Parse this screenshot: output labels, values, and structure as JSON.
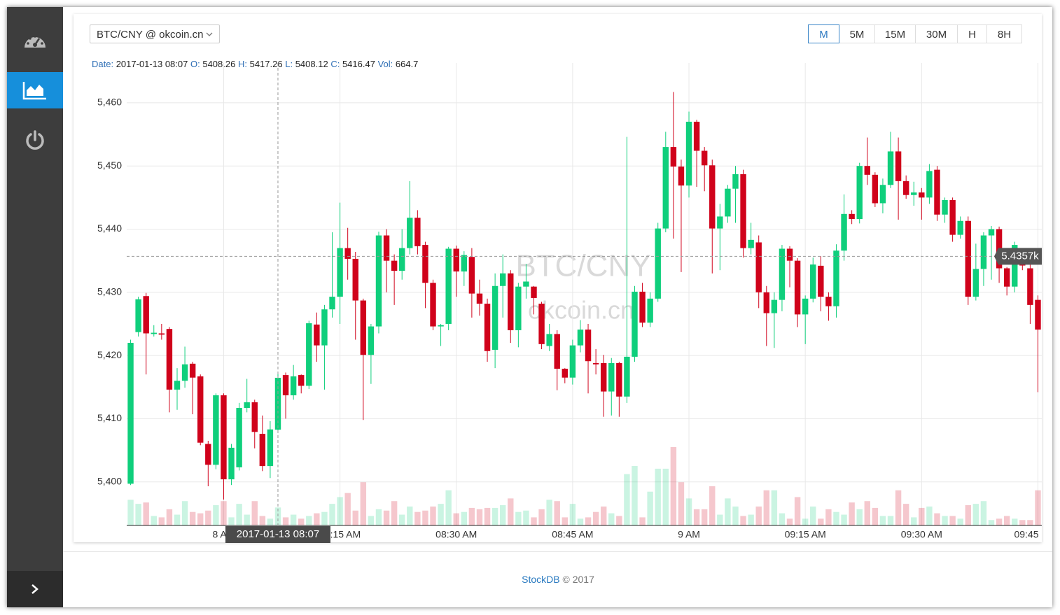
{
  "toolbar": {
    "pair": "BTC/CNY @ okcoin.cn",
    "intervals": [
      "M",
      "5M",
      "15M",
      "30M",
      "H",
      "8H"
    ],
    "active": "M"
  },
  "footer": {
    "brand": "StockDB",
    "copyright": "© 2017"
  },
  "chart_data": {
    "type": "candlestick",
    "watermark": [
      "BTC/CNY",
      "okcoin.cn"
    ],
    "up_color": "#0fcf7c",
    "down_color": "#d0021b",
    "grid": true,
    "ylim": [
      5393.1,
      5466.3
    ],
    "yticks": [
      {
        "value": 5400,
        "label": "5,400"
      },
      {
        "value": 5410,
        "label": "5,410"
      },
      {
        "value": 5420,
        "label": "5,420"
      },
      {
        "value": 5430,
        "label": "5,430"
      },
      {
        "value": 5440,
        "label": "5,440"
      },
      {
        "value": 5450,
        "label": "5,450"
      },
      {
        "value": 5460,
        "label": "5,460"
      }
    ],
    "xticks": [
      {
        "value": "08:00",
        "label": "8 AM"
      },
      {
        "value": "08:15",
        "label": "08:15 AM"
      },
      {
        "value": "08:30",
        "label": "08:30 AM"
      },
      {
        "value": "08:45",
        "label": "08:45 AM"
      },
      {
        "value": "09:00",
        "label": "9 AM"
      },
      {
        "value": "09:15",
        "label": "09:15 AM"
      },
      {
        "value": "09:30",
        "label": "09:30 AM"
      },
      {
        "value": "09:45",
        "label": "09:45"
      }
    ],
    "readout_labels": {
      "date": "Date:",
      "open": "O:",
      "high": "H:",
      "low": "L:",
      "close": "C:",
      "volume": "Vol:"
    },
    "crosshair": {
      "x": "08:07",
      "date": "2017-01-13 08:07",
      "price": {
        "value": 5435.7,
        "label": "5.4357k"
      }
    },
    "categories": [
      "07:48",
      "07:49",
      "07:50",
      "07:51",
      "07:52",
      "07:53",
      "07:54",
      "07:55",
      "07:56",
      "07:57",
      "07:58",
      "07:59",
      "08:00",
      "08:01",
      "08:02",
      "08:03",
      "08:04",
      "08:05",
      "08:06",
      "08:07",
      "08:08",
      "08:09",
      "08:10",
      "08:11",
      "08:12",
      "08:13",
      "08:14",
      "08:15",
      "08:16",
      "08:17",
      "08:18",
      "08:19",
      "08:20",
      "08:21",
      "08:22",
      "08:23",
      "08:24",
      "08:25",
      "08:26",
      "08:27",
      "08:28",
      "08:29",
      "08:30",
      "08:31",
      "08:32",
      "08:33",
      "08:34",
      "08:35",
      "08:36",
      "08:37",
      "08:38",
      "08:39",
      "08:40",
      "08:41",
      "08:42",
      "08:43",
      "08:44",
      "08:45",
      "08:46",
      "08:47",
      "08:48",
      "08:49",
      "08:50",
      "08:51",
      "08:52",
      "08:53",
      "08:54",
      "08:55",
      "08:56",
      "08:57",
      "08:58",
      "08:59",
      "09:00",
      "09:01",
      "09:02",
      "09:03",
      "09:04",
      "09:05",
      "09:06",
      "09:07",
      "09:08",
      "09:09",
      "09:10",
      "09:11",
      "09:12",
      "09:13",
      "09:14",
      "09:15",
      "09:16",
      "09:17",
      "09:18",
      "09:19",
      "09:20",
      "09:21",
      "09:22",
      "09:23",
      "09:24",
      "09:25",
      "09:26",
      "09:27",
      "09:28",
      "09:29",
      "09:30",
      "09:31",
      "09:32",
      "09:33",
      "09:34",
      "09:35",
      "09:36",
      "09:37",
      "09:38",
      "09:39",
      "09:40",
      "09:41",
      "09:42",
      "09:43",
      "09:44",
      "09:45"
    ],
    "open": [
      5399.7,
      5423.7,
      5429.4,
      5423.4,
      5423.5,
      5424.2,
      5414.6,
      5416,
      5418.7,
      5416.7,
      5406,
      5402.7,
      5413.7,
      5400.4,
      5402.3,
      5411.7,
      5412.6,
      5407.6,
      5402.5,
      5408.26,
      5416.9,
      5413.7,
      5416.9,
      5415.2,
      5424.9,
      5421.6,
      5427.3,
      5429.3,
      5437,
      5435.3,
      5428.7,
      5420.1,
      5424.6,
      5439,
      5435,
      5433.4,
      5437,
      5441.8,
      5437.5,
      5431.5,
      5424.6,
      5425,
      5436.9,
      5433.3,
      5435.6,
      5429.8,
      5428.2,
      5420.9,
      5431,
      5433,
      5424,
      5430.9,
      5430.9,
      5428.2,
      5421.5,
      5423.4,
      5417.9,
      5416.5,
      5421.6,
      5424.1,
      5418.8,
      5418.8,
      5414.3,
      5418.8,
      5413.5,
      5419.8,
      5430.1,
      5425.2,
      5429,
      5440.1,
      5453,
      5449.9,
      5446.9,
      5457,
      5452.4,
      5450.1,
      5440.1,
      5442,
      5446.4,
      5448.7,
      5437,
      5437.9,
      5430,
      5426.7,
      5428.8,
      5436.9,
      5435,
      5426.5,
      5429,
      5434.2,
      5429.3,
      5427.8,
      5436.6,
      5442.4,
      5441.6,
      5450,
      5448.6,
      5444.1,
      5447,
      5452.3,
      5447.6,
      5445.4,
      5445.8,
      5445,
      5449.4,
      5442.3,
      5444.6,
      5439.1,
      5441.3,
      5429.3,
      5433.7,
      5439,
      5440,
      5433.8,
      5430.9,
      5434.4,
      5433.8,
      5428.8
    ],
    "high": [
      5422.5,
      5429.3,
      5429.9,
      5424.8,
      5425,
      5424.5,
      5418,
      5421.4,
      5419,
      5417,
      5406.5,
      5414,
      5414,
      5406,
      5412.5,
      5416.3,
      5413,
      5410.5,
      5409.6,
      5417.26,
      5417.3,
      5418.5,
      5417,
      5425.5,
      5426.8,
      5428,
      5439.5,
      5444.2,
      5440.2,
      5436.4,
      5429,
      5425,
      5439.6,
      5440,
      5436,
      5440,
      5447.6,
      5443,
      5438,
      5432,
      5425,
      5437.2,
      5437.4,
      5436.5,
      5437,
      5432,
      5429,
      5433,
      5436,
      5433.5,
      5431.5,
      5434.5,
      5431,
      5428.5,
      5425,
      5424,
      5418,
      5422.5,
      5425.6,
      5425,
      5421,
      5420.1,
      5419.6,
      5419,
      5454.6,
      5431,
      5431.5,
      5430,
      5441,
      5455.4,
      5461.7,
      5451,
      5458.6,
      5457.3,
      5453,
      5451,
      5444,
      5447,
      5450,
      5449.4,
      5441,
      5439,
      5431,
      5430,
      5437.5,
      5437.3,
      5435.4,
      5429.5,
      5435.5,
      5435.7,
      5430,
      5437.6,
      5445.5,
      5443,
      5450.5,
      5454.5,
      5449,
      5448,
      5455.4,
      5454.5,
      5448.5,
      5447.5,
      5446.5,
      5450.3,
      5450,
      5445,
      5445,
      5442,
      5442,
      5437.7,
      5439.5,
      5440.5,
      5440.4,
      5434,
      5438,
      5436,
      5434.5,
      5429.5
    ],
    "low": [
      5399.5,
      5423,
      5417,
      5423,
      5422.5,
      5411,
      5411.4,
      5414.9,
      5410.7,
      5405.8,
      5399.3,
      5402,
      5397.2,
      5399.5,
      5401.8,
      5411,
      5405.3,
      5401.7,
      5400.6,
      5408.12,
      5410,
      5413,
      5414,
      5414.7,
      5419,
      5414.6,
      5426,
      5425,
      5432,
      5422.5,
      5409.8,
      5415.5,
      5423.5,
      5430,
      5428,
      5432,
      5436,
      5436,
      5427.5,
      5424,
      5421.5,
      5424,
      5429.3,
      5431,
      5426,
      5426.3,
      5419,
      5418,
      5426,
      5422,
      5421.3,
      5429,
      5426.5,
      5421,
      5420.7,
      5414.5,
      5415.6,
      5415.4,
      5420.5,
      5414,
      5417,
      5410.3,
      5410.5,
      5410.3,
      5412.5,
      5419,
      5424.5,
      5424.5,
      5428.5,
      5439.5,
      5438.5,
      5433.2,
      5445,
      5446.7,
      5446,
      5433,
      5433.5,
      5441,
      5441,
      5435.5,
      5436,
      5427.5,
      5421.5,
      5421.2,
      5427,
      5430.8,
      5424.5,
      5421.8,
      5428.4,
      5427,
      5425.5,
      5426,
      5435,
      5440.8,
      5440.9,
      5447,
      5443.5,
      5442.5,
      5446.5,
      5441.5,
      5444.8,
      5443.7,
      5441.5,
      5444,
      5441.3,
      5441,
      5438,
      5438.5,
      5428,
      5428.7,
      5431,
      5432,
      5431.5,
      5429.5,
      5430,
      5433.5,
      5425,
      5414.2
    ],
    "close": [
      5422,
      5428.9,
      5423.5,
      5423.6,
      5423.3,
      5414.6,
      5416,
      5418.6,
      5416.5,
      5406.2,
      5402.7,
      5413.7,
      5400.4,
      5405.4,
      5411.7,
      5412.6,
      5407.9,
      5402.5,
      5408.3,
      5416.47,
      5413.7,
      5416.7,
      5415.2,
      5425.1,
      5421.6,
      5427.3,
      5429.3,
      5437,
      5435.3,
      5428.7,
      5420.1,
      5424.6,
      5439,
      5435,
      5433.4,
      5437,
      5441.8,
      5437.3,
      5431.5,
      5424.6,
      5424.8,
      5436.9,
      5433.3,
      5435.9,
      5429.8,
      5428.2,
      5420.7,
      5431,
      5433,
      5424,
      5430.9,
      5431.7,
      5429.1,
      5421.8,
      5423.4,
      5417.9,
      5416.5,
      5421.6,
      5424.1,
      5419.1,
      5418.6,
      5414.3,
      5418.8,
      5413.5,
      5419.8,
      5430.1,
      5425.2,
      5429,
      5440.1,
      5453,
      5449.9,
      5446.9,
      5457,
      5452.4,
      5450.1,
      5440.1,
      5442,
      5446.4,
      5448.7,
      5437,
      5438.3,
      5430,
      5426.7,
      5428.8,
      5436.9,
      5435,
      5426.5,
      5429,
      5434.4,
      5429.3,
      5427.8,
      5436.6,
      5442.4,
      5441.6,
      5450,
      5448.6,
      5444.1,
      5447,
      5452.3,
      5447.6,
      5445.4,
      5445.8,
      5445,
      5449.2,
      5442.3,
      5444.6,
      5439.1,
      5441.3,
      5429.3,
      5433.7,
      5439,
      5440,
      5433.8,
      5430.9,
      5437.5,
      5434.3,
      5428,
      5424.1
    ],
    "volume": [
      950,
      800,
      850,
      350,
      300,
      600,
      400,
      900,
      500,
      450,
      550,
      750,
      900,
      300,
      800,
      400,
      900,
      350,
      250,
      664.7,
      300,
      400,
      250,
      350,
      450,
      500,
      800,
      1050,
      1200,
      550,
      1600,
      350,
      600,
      550,
      900,
      400,
      700,
      500,
      550,
      700,
      800,
      1300,
      450,
      500,
      650,
      600,
      650,
      650,
      750,
      1000,
      500,
      550,
      300,
      600,
      950,
      900,
      300,
      800,
      250,
      300,
      500,
      700,
      450,
      350,
      1900,
      2200,
      300,
      1250,
      2100,
      2100,
      2900,
      1600,
      1000,
      600,
      600,
      1450,
      400,
      1000,
      700,
      350,
      400,
      700,
      1300,
      1300,
      450,
      250,
      1050,
      250,
      700,
      250,
      600,
      500,
      400,
      850,
      600,
      900,
      650,
      350,
      350,
      1300,
      800,
      300,
      650,
      700,
      450,
      350,
      350,
      250,
      750,
      800,
      900,
      200,
      250,
      350,
      250,
      200,
      200,
      1300
    ]
  }
}
